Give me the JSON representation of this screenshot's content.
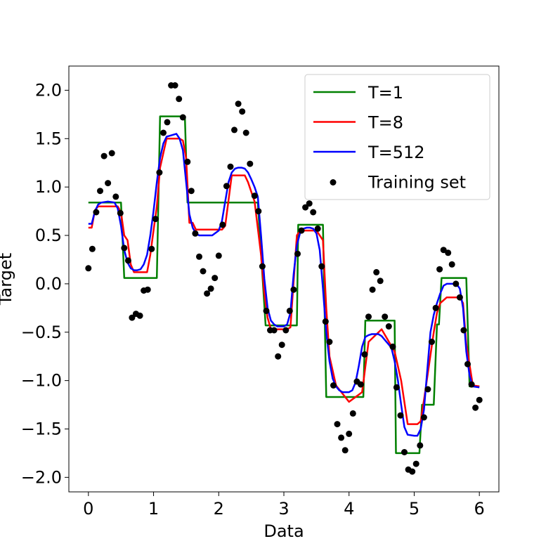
{
  "chart_data": {
    "type": "line",
    "title": "",
    "xlabel": "Data",
    "ylabel": "Target",
    "xlim": [
      -0.3,
      6.3
    ],
    "ylim": [
      -2.15,
      2.25
    ],
    "xticks": [
      0,
      1,
      2,
      3,
      4,
      5,
      6
    ],
    "xtick_labels": [
      "0",
      "1",
      "2",
      "3",
      "4",
      "5",
      "6"
    ],
    "yticks": [
      2.0,
      1.5,
      1.0,
      0.5,
      0.0,
      -0.5,
      -1.0,
      -1.5,
      -2.0
    ],
    "ytick_labels": [
      "2.0",
      "1.5",
      "1.0",
      "0.5",
      "0.0",
      "−0.5",
      "−1.0",
      "−1.5",
      "−2.0"
    ],
    "grid": false,
    "legend": "top-right",
    "series": [
      {
        "name": "T=1",
        "color": "#008000",
        "kind": "line",
        "x": [
          0,
          0.5,
          0.55,
          1.05,
          1.1,
          1.48,
          1.52,
          2.6,
          2.72,
          2.75,
          3.2,
          3.22,
          3.55,
          3.6,
          3.65,
          4.22,
          4.25,
          4.7,
          4.72,
          5.08,
          5.12,
          5.3,
          5.35,
          5.38,
          5.42,
          5.8,
          5.85,
          6.0
        ],
        "y": [
          0.84,
          0.84,
          0.06,
          0.06,
          1.73,
          1.73,
          0.84,
          0.84,
          -0.43,
          -0.43,
          -0.43,
          0.61,
          0.61,
          0.61,
          -1.17,
          -1.17,
          -0.38,
          -0.38,
          -1.75,
          -1.75,
          -1.25,
          -1.25,
          -0.42,
          -0.42,
          0.06,
          0.06,
          -1.06,
          -1.06
        ]
      },
      {
        "name": "T=8",
        "color": "#ff0000",
        "kind": "line",
        "x": [
          0,
          0.05,
          0.1,
          0.15,
          0.45,
          0.5,
          0.55,
          0.6,
          0.65,
          0.7,
          0.9,
          0.95,
          1.0,
          1.05,
          1.1,
          1.2,
          1.4,
          1.45,
          1.5,
          1.55,
          1.6,
          1.65,
          2.05,
          2.1,
          2.2,
          2.4,
          2.45,
          2.55,
          2.65,
          2.7,
          2.75,
          2.8,
          3.05,
          3.1,
          3.2,
          3.25,
          3.5,
          3.6,
          3.65,
          3.7,
          3.8,
          4.0,
          4.2,
          4.3,
          4.5,
          4.7,
          4.8,
          4.9,
          5.05,
          5.1,
          5.15,
          5.3,
          5.35,
          5.4,
          5.5,
          5.7,
          5.75,
          5.8,
          5.9,
          6.0
        ],
        "y": [
          0.58,
          0.58,
          0.76,
          0.8,
          0.8,
          0.74,
          0.5,
          0.45,
          0.2,
          0.12,
          0.12,
          0.3,
          0.55,
          0.8,
          1.2,
          1.5,
          1.5,
          1.48,
          1.3,
          0.63,
          0.63,
          0.56,
          0.56,
          0.6,
          1.12,
          1.12,
          1.05,
          0.85,
          0.3,
          -0.1,
          -0.35,
          -0.47,
          -0.47,
          -0.45,
          0.5,
          0.55,
          0.55,
          0.45,
          -0.25,
          -0.75,
          -1.05,
          -1.22,
          -1.12,
          -0.6,
          -0.47,
          -0.7,
          -1.0,
          -1.45,
          -1.45,
          -1.42,
          -1.2,
          -0.5,
          -0.3,
          -0.2,
          -0.14,
          -0.14,
          -0.2,
          -0.62,
          -1.05,
          -1.06
        ]
      },
      {
        "name": "T=512",
        "color": "#0000ff",
        "kind": "line",
        "x": [
          0,
          0.05,
          0.1,
          0.15,
          0.2,
          0.3,
          0.4,
          0.45,
          0.5,
          0.55,
          0.6,
          0.65,
          0.7,
          0.75,
          0.8,
          0.85,
          0.9,
          0.95,
          1.0,
          1.05,
          1.1,
          1.15,
          1.2,
          1.25,
          1.3,
          1.35,
          1.4,
          1.45,
          1.5,
          1.55,
          1.6,
          1.65,
          1.7,
          1.8,
          1.9,
          2.0,
          2.05,
          2.1,
          2.15,
          2.2,
          2.25,
          2.3,
          2.35,
          2.4,
          2.45,
          2.5,
          2.55,
          2.6,
          2.65,
          2.7,
          2.75,
          2.8,
          2.85,
          2.9,
          3.0,
          3.05,
          3.1,
          3.15,
          3.2,
          3.25,
          3.3,
          3.35,
          3.4,
          3.45,
          3.5,
          3.55,
          3.6,
          3.65,
          3.7,
          3.75,
          3.8,
          3.85,
          3.9,
          4.0,
          4.05,
          4.1,
          4.15,
          4.2,
          4.25,
          4.3,
          4.35,
          4.4,
          4.45,
          4.5,
          4.55,
          4.6,
          4.65,
          4.7,
          4.75,
          4.8,
          4.85,
          4.9,
          5.0,
          5.05,
          5.1,
          5.15,
          5.2,
          5.25,
          5.3,
          5.35,
          5.4,
          5.45,
          5.5,
          5.55,
          5.6,
          5.65,
          5.7,
          5.75,
          5.8,
          5.85,
          5.9,
          6.0
        ],
        "y": [
          0.62,
          0.62,
          0.75,
          0.82,
          0.84,
          0.85,
          0.84,
          0.78,
          0.6,
          0.35,
          0.22,
          0.16,
          0.14,
          0.14,
          0.15,
          0.2,
          0.3,
          0.5,
          0.75,
          1.05,
          1.3,
          1.45,
          1.52,
          1.53,
          1.54,
          1.55,
          1.5,
          1.38,
          1.05,
          0.72,
          0.58,
          0.52,
          0.5,
          0.5,
          0.5,
          0.55,
          0.65,
          0.85,
          1.05,
          1.15,
          1.19,
          1.2,
          1.2,
          1.19,
          1.15,
          1.08,
          1.0,
          0.9,
          0.5,
          0.05,
          -0.25,
          -0.38,
          -0.42,
          -0.44,
          -0.44,
          -0.42,
          -0.3,
          0.1,
          0.4,
          0.53,
          0.57,
          0.58,
          0.58,
          0.57,
          0.52,
          0.35,
          -0.05,
          -0.5,
          -0.8,
          -0.98,
          -1.06,
          -1.1,
          -1.12,
          -1.12,
          -1.1,
          -1.02,
          -0.85,
          -0.65,
          -0.55,
          -0.53,
          -0.52,
          -0.52,
          -0.52,
          -0.54,
          -0.58,
          -0.62,
          -0.66,
          -0.8,
          -1.0,
          -1.25,
          -1.48,
          -1.56,
          -1.57,
          -1.57,
          -1.5,
          -1.3,
          -0.9,
          -0.5,
          -0.32,
          -0.2,
          -0.1,
          -0.02,
          0.0,
          0.0,
          0.0,
          0.0,
          -0.05,
          -0.25,
          -0.7,
          -0.95,
          -1.06,
          -1.07
        ]
      },
      {
        "name": "Training set",
        "color": "#000000",
        "kind": "scatter",
        "x": [
          0.0,
          0.06,
          0.12,
          0.18,
          0.24,
          0.3,
          0.36,
          0.42,
          0.49,
          0.55,
          0.61,
          0.67,
          0.73,
          0.79,
          0.85,
          0.91,
          0.97,
          1.03,
          1.09,
          1.15,
          1.21,
          1.27,
          1.33,
          1.39,
          1.45,
          1.52,
          1.58,
          1.64,
          1.7,
          1.76,
          1.82,
          1.88,
          1.94,
          2.0,
          2.06,
          2.12,
          2.18,
          2.24,
          2.3,
          2.36,
          2.42,
          2.48,
          2.55,
          2.61,
          2.67,
          2.73,
          2.79,
          2.85,
          2.91,
          2.97,
          3.03,
          3.09,
          3.15,
          3.21,
          3.27,
          3.33,
          3.39,
          3.45,
          3.52,
          3.58,
          3.64,
          3.7,
          3.76,
          3.82,
          3.88,
          3.94,
          4.0,
          4.06,
          4.12,
          4.18,
          4.24,
          4.3,
          4.36,
          4.42,
          4.48,
          4.55,
          4.61,
          4.67,
          4.73,
          4.79,
          4.85,
          4.91,
          4.97,
          5.03,
          5.09,
          5.15,
          5.21,
          5.27,
          5.33,
          5.39,
          5.45,
          5.52,
          5.58,
          5.64,
          5.7,
          5.76,
          5.82,
          5.88,
          5.94,
          6.0
        ],
        "y": [
          0.16,
          0.36,
          0.74,
          0.96,
          1.32,
          1.04,
          1.35,
          0.9,
          0.73,
          0.37,
          0.24,
          -0.35,
          -0.31,
          -0.33,
          -0.07,
          -0.06,
          0.36,
          0.67,
          1.15,
          1.56,
          1.67,
          2.05,
          2.05,
          1.91,
          1.72,
          1.26,
          0.96,
          0.52,
          0.28,
          0.13,
          -0.1,
          -0.05,
          0.06,
          0.29,
          0.61,
          1.01,
          1.21,
          1.59,
          1.86,
          1.78,
          1.56,
          1.24,
          0.91,
          0.75,
          0.18,
          -0.28,
          -0.48,
          -0.48,
          -0.75,
          -0.63,
          -0.48,
          -0.28,
          -0.06,
          0.31,
          0.55,
          0.79,
          0.83,
          0.74,
          0.57,
          0.18,
          -0.39,
          -0.6,
          -1.05,
          -1.45,
          -1.59,
          -1.72,
          -1.55,
          -1.34,
          -1.01,
          -1.04,
          -0.73,
          -0.34,
          -0.06,
          0.12,
          0.03,
          -0.34,
          -0.44,
          -0.65,
          -1.07,
          -1.36,
          -1.74,
          -1.92,
          -1.94,
          -1.86,
          -1.67,
          -1.38,
          -1.09,
          -0.6,
          -0.25,
          0.15,
          0.35,
          0.32,
          0.2,
          0.0,
          -0.14,
          -0.48,
          -0.83,
          -1.04,
          -1.28,
          -1.2
        ]
      }
    ]
  }
}
